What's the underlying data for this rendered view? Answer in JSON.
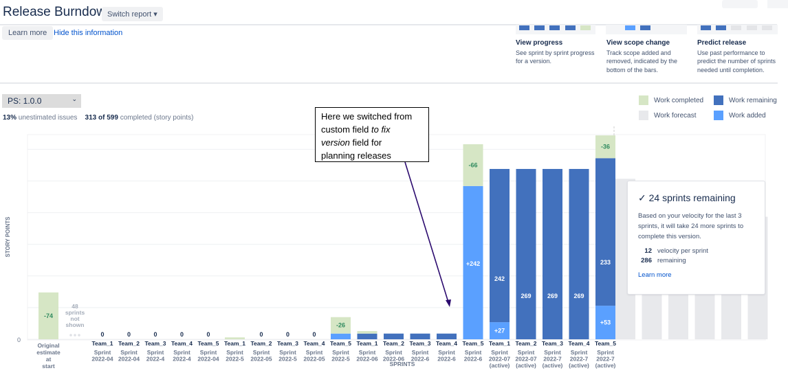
{
  "header": {
    "title": "Release Burndown",
    "switch_report": "Switch report",
    "chevron": "⌄"
  },
  "info": {
    "learn_more": "Learn more",
    "hide": "Hide this information",
    "panels": [
      {
        "title": "View progress",
        "text": "See sprint by sprint progress for a version."
      },
      {
        "title": "View scope change",
        "text": "Track scope added and removed, indicated by the bottom of the bars."
      },
      {
        "title": "Predict release",
        "text": "Use past performance to predict the number of sprints needed until completion."
      }
    ]
  },
  "version_select": {
    "value": "PS: 1.0.0"
  },
  "stats": {
    "unestimated_pct": "13%",
    "unestimated_label": "unestimated issues",
    "completed": "313 of 599",
    "completed_label": "completed (story points)"
  },
  "legend": [
    {
      "label": "Work completed",
      "color": "#d6e6c5"
    },
    {
      "label": "Work remaining",
      "color": "#4271bd"
    },
    {
      "label": "Work forecast",
      "color": "#e8e9ec"
    },
    {
      "label": "Work added",
      "color": "#5aa0ff"
    }
  ],
  "annotation": {
    "line1": "Here we switched from",
    "line2a": "custom field ",
    "line2b": "to fix",
    "line3a": "version",
    "line3b": " field for",
    "line4": "planning releases"
  },
  "forecast_card": {
    "title": "24 sprints remaining",
    "text": "Based on your velocity for the last 3 sprints, it will take 24 more sprints to complete this version.",
    "velocity": "12",
    "velocity_label": "velocity per sprint",
    "remaining": "286",
    "remaining_label": "remaining",
    "learn_more": "Learn more"
  },
  "chart_data": {
    "type": "bar",
    "stacked": true,
    "ylabel": "STORY POINTS",
    "xlabel": "SPRINTS",
    "y_tick_labels": [
      "0"
    ],
    "ylim": [
      0,
      320
    ],
    "grid": true,
    "original": {
      "label_lines": [
        "Original",
        "estimate",
        "at",
        "start"
      ],
      "completed": 74,
      "completed_label": "-74"
    },
    "hidden_note": [
      "48",
      "sprints",
      "not",
      "shown"
    ],
    "sprints": [
      {
        "team": "Team_1",
        "sprint": [
          "Sprint",
          "2022-04"
        ],
        "completed": 0,
        "remaining": 0,
        "added": 0,
        "zero_label": "0"
      },
      {
        "team": "Team_2",
        "sprint": [
          "Sprint",
          "2022-04"
        ],
        "completed": 0,
        "remaining": 0,
        "added": 0,
        "zero_label": "0"
      },
      {
        "team": "Team_3",
        "sprint": [
          "Sprint",
          "2022-4"
        ],
        "completed": 0,
        "remaining": 0,
        "added": 0,
        "zero_label": "0"
      },
      {
        "team": "Team_4",
        "sprint": [
          "Sprint",
          "2022-4"
        ],
        "completed": 0,
        "remaining": 0,
        "added": 0,
        "zero_label": "0"
      },
      {
        "team": "Team_5",
        "sprint": [
          "Sprint",
          "2022-04"
        ],
        "completed": 0,
        "remaining": 0,
        "added": 0,
        "zero_label": "0"
      },
      {
        "team": "Team_1",
        "sprint": [
          "Sprint",
          "2022-5"
        ],
        "completed": 3,
        "remaining": 0,
        "added": 0
      },
      {
        "team": "Team_2",
        "sprint": [
          "Sprint",
          "2022-05"
        ],
        "completed": 0,
        "remaining": 0,
        "added": 0,
        "zero_label": "0"
      },
      {
        "team": "Team_3",
        "sprint": [
          "Sprint",
          "2022-5"
        ],
        "completed": 0,
        "remaining": 0,
        "added": 0,
        "zero_label": "0"
      },
      {
        "team": "Team_4",
        "sprint": [
          "Sprint",
          "2022-05"
        ],
        "completed": 0,
        "remaining": 0,
        "added": 0,
        "zero_label": "0"
      },
      {
        "team": "Team_5",
        "sprint": [
          "Sprint",
          "2022-5"
        ],
        "completed": 26,
        "remaining": 0,
        "added": 9,
        "completed_label": "-26"
      },
      {
        "team": "Team_1",
        "sprint": [
          "Sprint",
          "2022-06"
        ],
        "completed": 4,
        "remaining": 9,
        "added": 0
      },
      {
        "team": "Team_2",
        "sprint": [
          "Sprint",
          "2022-06"
        ],
        "completed": 0,
        "remaining": 9,
        "added": 0
      },
      {
        "team": "Team_3",
        "sprint": [
          "Sprint",
          "2022-6"
        ],
        "completed": 0,
        "remaining": 9,
        "added": 0
      },
      {
        "team": "Team_4",
        "sprint": [
          "Sprint",
          "2022-6"
        ],
        "completed": 0,
        "remaining": 9,
        "added": 0
      },
      {
        "team": "Team_5",
        "sprint": [
          "Sprint",
          "2022-6"
        ],
        "completed": 66,
        "remaining": 0,
        "added": 242,
        "completed_label": "-66",
        "added_label": "+242"
      },
      {
        "team": "Team_1",
        "sprint": [
          "Sprint",
          "2022-07",
          "(active)"
        ],
        "completed": 0,
        "remaining": 242,
        "added": 27,
        "remaining_label": "242",
        "added_label": "+27"
      },
      {
        "team": "Team_2",
        "sprint": [
          "Sprint",
          "2022-07",
          "(active)"
        ],
        "completed": 0,
        "remaining": 269,
        "added": 0,
        "remaining_label": "269"
      },
      {
        "team": "Team_3",
        "sprint": [
          "Sprint",
          "2022-7",
          "(active)"
        ],
        "completed": 0,
        "remaining": 269,
        "added": 0,
        "remaining_label": "269"
      },
      {
        "team": "Team_4",
        "sprint": [
          "Sprint",
          "2022-7",
          "(active)"
        ],
        "completed": 0,
        "remaining": 269,
        "added": 0,
        "remaining_label": "269"
      },
      {
        "team": "Team_5",
        "sprint": [
          "Sprint",
          "2022-7",
          "(active)"
        ],
        "completed": 36,
        "remaining": 233,
        "added": 53,
        "completed_label": "-36",
        "remaining_label": "233",
        "added_label": "+53"
      }
    ],
    "forecast": [
      286,
      274,
      262,
      250,
      238,
      226
    ]
  }
}
